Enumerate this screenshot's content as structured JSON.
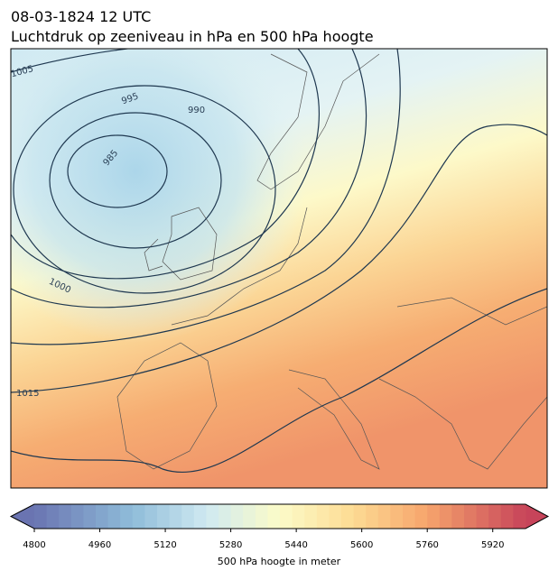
{
  "header": {
    "title": "08-03-1824 12 UTC",
    "subtitle": "Luchtdruk op zeeniveau in hPa en 500 hPa hoogte"
  },
  "contour_labels": [
    "1005",
    "995",
    "990",
    "985",
    "1000",
    "1015"
  ],
  "colorbar": {
    "lim": [
      4800,
      6000
    ],
    "ticks": [
      4800,
      4960,
      5120,
      5280,
      5440,
      5600,
      5760,
      5920
    ],
    "label": "500 hPa hoogte in meter"
  }
}
